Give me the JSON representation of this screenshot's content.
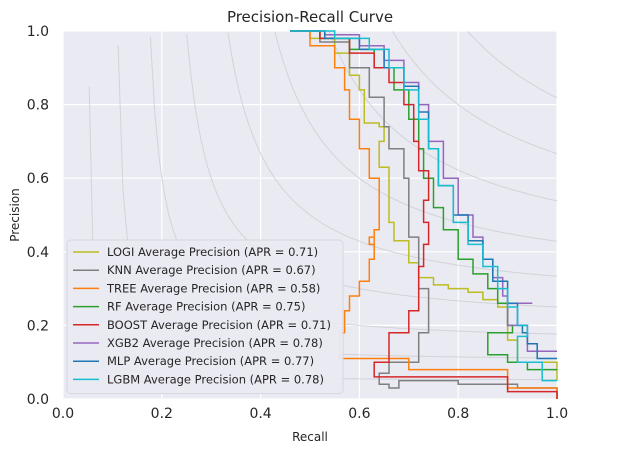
{
  "chart_data": {
    "type": "line",
    "title": "Precision-Recall Curve",
    "xlabel": "Recall",
    "ylabel": "Precision",
    "xlim": [
      0,
      1
    ],
    "ylim": [
      0,
      1
    ],
    "x_ticks": [
      "0.0",
      "0.2",
      "0.4",
      "0.6",
      "0.8",
      "1.0"
    ],
    "y_ticks": [
      "0.0",
      "0.2",
      "0.4",
      "0.6",
      "0.8",
      "1.0"
    ],
    "grid": true,
    "iso_f1_curves": true,
    "legend_position": "lower-left",
    "series": [
      {
        "name": "LOGI Average Precision  (APR = 0.71)",
        "color": "#bcbd22",
        "x": [
          0.46,
          0.5,
          0.55,
          0.58,
          0.6,
          0.61,
          0.64,
          0.65,
          0.64,
          0.66,
          0.67,
          0.7,
          0.72,
          0.75,
          0.78,
          0.82,
          0.85,
          0.88,
          0.9,
          0.92,
          1.0
        ],
        "y": [
          1.0,
          0.98,
          0.94,
          0.88,
          0.84,
          0.75,
          0.74,
          0.7,
          0.63,
          0.48,
          0.43,
          0.37,
          0.33,
          0.31,
          0.3,
          0.29,
          0.27,
          0.25,
          0.16,
          0.1,
          0.05
        ]
      },
      {
        "name": "KNN Average Precision  (APR = 0.67)",
        "color": "#7f7f7f",
        "x": [
          0.46,
          0.52,
          0.58,
          0.62,
          0.65,
          0.66,
          0.69,
          0.7,
          0.7,
          0.72,
          0.72,
          0.74,
          0.74,
          0.72,
          0.66,
          0.64,
          0.66,
          0.68,
          0.8,
          0.92,
          1.0
        ],
        "y": [
          1.0,
          0.97,
          0.9,
          0.82,
          0.74,
          0.68,
          0.6,
          0.5,
          0.44,
          0.36,
          0.3,
          0.24,
          0.18,
          0.1,
          0.07,
          0.04,
          0.03,
          0.05,
          0.04,
          0.03,
          0.0
        ]
      },
      {
        "name": "TREE Average Precision  (APR = 0.58)",
        "color": "#ff7f0e",
        "x": [
          0.46,
          0.5,
          0.55,
          0.57,
          0.58,
          0.6,
          0.62,
          0.64,
          0.64,
          0.63,
          0.62,
          0.63,
          0.62,
          0.6,
          0.58,
          0.57,
          0.56,
          0.7,
          0.9,
          1.0
        ],
        "y": [
          1.0,
          0.96,
          0.9,
          0.84,
          0.76,
          0.68,
          0.6,
          0.52,
          0.46,
          0.42,
          0.44,
          0.38,
          0.32,
          0.28,
          0.24,
          0.18,
          0.11,
          0.08,
          0.03,
          0.0
        ]
      },
      {
        "name": "RF Average Precision  (APR = 0.75)",
        "color": "#2ca02c",
        "x": [
          0.46,
          0.52,
          0.58,
          0.63,
          0.67,
          0.7,
          0.72,
          0.73,
          0.75,
          0.77,
          0.8,
          0.83,
          0.86,
          0.88,
          0.9,
          0.91,
          0.86,
          0.9,
          0.94,
          1.0
        ],
        "y": [
          1.0,
          0.98,
          0.95,
          0.9,
          0.84,
          0.76,
          0.68,
          0.6,
          0.52,
          0.46,
          0.38,
          0.34,
          0.3,
          0.26,
          0.2,
          0.18,
          0.12,
          0.1,
          0.08,
          0.08
        ]
      },
      {
        "name": "BOOST Average Precision  (APR = 0.71)",
        "color": "#d62728",
        "x": [
          0.46,
          0.52,
          0.58,
          0.63,
          0.66,
          0.69,
          0.71,
          0.72,
          0.74,
          0.73,
          0.74,
          0.73,
          0.72,
          0.72,
          0.7,
          0.66,
          0.63,
          0.8,
          0.9,
          1.0
        ],
        "y": [
          1.0,
          0.98,
          0.94,
          0.9,
          0.86,
          0.8,
          0.7,
          0.62,
          0.54,
          0.48,
          0.42,
          0.36,
          0.3,
          0.24,
          0.18,
          0.1,
          0.06,
          0.06,
          0.02,
          0.0
        ]
      },
      {
        "name": "XGB2 Average Precision  (APR = 0.78)",
        "color": "#9467bd",
        "x": [
          0.46,
          0.53,
          0.6,
          0.65,
          0.69,
          0.72,
          0.74,
          0.77,
          0.8,
          0.83,
          0.85,
          0.87,
          0.89,
          0.9,
          0.95,
          0.9,
          0.94,
          1.0
        ],
        "y": [
          1.0,
          0.99,
          0.96,
          0.92,
          0.86,
          0.8,
          0.7,
          0.6,
          0.5,
          0.44,
          0.38,
          0.33,
          0.28,
          0.26,
          0.26,
          0.2,
          0.13,
          0.13
        ]
      },
      {
        "name": "MLP Average Precision  (APR = 0.77)",
        "color": "#1f77b4",
        "x": [
          0.46,
          0.53,
          0.6,
          0.65,
          0.69,
          0.72,
          0.74,
          0.76,
          0.79,
          0.82,
          0.85,
          0.87,
          0.9,
          0.92,
          0.93,
          0.94,
          0.96,
          1.0
        ],
        "y": [
          1.0,
          0.98,
          0.95,
          0.9,
          0.85,
          0.78,
          0.68,
          0.58,
          0.5,
          0.43,
          0.38,
          0.32,
          0.26,
          0.2,
          0.18,
          0.15,
          0.11,
          0.11
        ]
      },
      {
        "name": "LGBM Average Precision  (APR = 0.78)",
        "color": "#17becf",
        "x": [
          0.46,
          0.55,
          0.62,
          0.66,
          0.69,
          0.72,
          0.74,
          0.76,
          0.79,
          0.82,
          0.85,
          0.88,
          0.9,
          0.92,
          0.94,
          0.92,
          0.97,
          1.0
        ],
        "y": [
          1.0,
          0.98,
          0.95,
          0.9,
          0.84,
          0.76,
          0.68,
          0.58,
          0.48,
          0.42,
          0.36,
          0.3,
          0.25,
          0.2,
          0.17,
          0.1,
          0.05,
          0.05
        ]
      }
    ]
  }
}
